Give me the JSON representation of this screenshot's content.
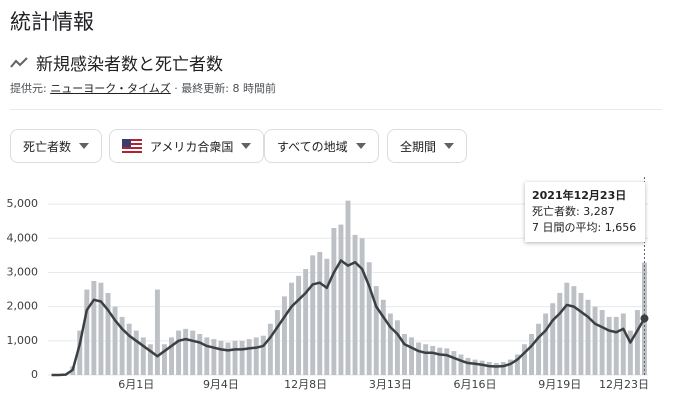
{
  "header": {
    "title": "統計情報",
    "subtitle": "新規感染者数と死亡者数",
    "source_label": "提供元:",
    "source": "ニューヨーク・タイムズ",
    "updated": "· 最終更新: 8 時間前"
  },
  "filters": [
    "死亡者数",
    "アメリカ合衆国",
    "すべての地域",
    "全期間"
  ],
  "tooltip": {
    "date": "2021年12月23日",
    "row1": "死亡者数: 3,287",
    "row2": "7 日間の平均: 1,656"
  },
  "chart_data": {
    "type": "bar-line",
    "categories": [
      null,
      null,
      null,
      null,
      null,
      null,
      null,
      null,
      null,
      null,
      null,
      null,
      "6月1日",
      null,
      null,
      null,
      null,
      null,
      null,
      null,
      null,
      null,
      null,
      null,
      "9月4日",
      null,
      null,
      null,
      null,
      null,
      null,
      null,
      null,
      null,
      null,
      null,
      "12月8日",
      null,
      null,
      null,
      null,
      null,
      null,
      null,
      null,
      null,
      null,
      null,
      "3月13日",
      null,
      null,
      null,
      null,
      null,
      null,
      null,
      null,
      null,
      null,
      null,
      "6月16日",
      null,
      null,
      null,
      null,
      null,
      null,
      null,
      null,
      null,
      null,
      null,
      "9月19日",
      null,
      null,
      null,
      null,
      null,
      null,
      null,
      null,
      null,
      null,
      null,
      "12月23日"
    ],
    "series": [
      {
        "name": "死亡者数",
        "color": "#bdc1c6",
        "values": [
          0,
          0,
          15,
          250,
          1300,
          2500,
          2750,
          2700,
          2400,
          2000,
          1700,
          1500,
          1300,
          1100,
          900,
          2500,
          900,
          1100,
          1300,
          1350,
          1300,
          1200,
          1100,
          1050,
          1000,
          950,
          1000,
          1000,
          1050,
          1100,
          1150,
          1500,
          1900,
          2300,
          2700,
          2900,
          3100,
          3500,
          3600,
          3400,
          4300,
          4400,
          5100,
          4100,
          4000,
          3300,
          2600,
          2200,
          1800,
          1600,
          1200,
          1100,
          950,
          900,
          850,
          800,
          780,
          700,
          600,
          500,
          450,
          420,
          380,
          350,
          380,
          450,
          600,
          900,
          1200,
          1500,
          1800,
          2100,
          2400,
          2700,
          2600,
          2400,
          2200,
          2000,
          1900,
          1700,
          1700,
          1800,
          1300,
          1900,
          3287
        ]
      },
      {
        "name": "7 日間の平均",
        "color": "#3c4043",
        "values": [
          0,
          0,
          10,
          150,
          900,
          1900,
          2200,
          2150,
          1900,
          1600,
          1350,
          1150,
          1000,
          850,
          700,
          550,
          700,
          850,
          1000,
          1050,
          1000,
          950,
          850,
          800,
          750,
          720,
          750,
          750,
          780,
          800,
          850,
          1100,
          1400,
          1700,
          2000,
          2200,
          2400,
          2650,
          2700,
          2550,
          3000,
          3350,
          3200,
          3300,
          3100,
          2600,
          2000,
          1700,
          1400,
          1200,
          900,
          800,
          700,
          650,
          650,
          600,
          580,
          500,
          420,
          350,
          330,
          300,
          260,
          250,
          260,
          320,
          450,
          650,
          850,
          1100,
          1300,
          1600,
          1800,
          2050,
          2000,
          1850,
          1700,
          1500,
          1400,
          1300,
          1250,
          1350,
          950,
          1300,
          1656
        ]
      }
    ],
    "ylim": [
      0,
      5500
    ],
    "yticks": [
      0,
      {
        "value": 1000,
        "label": "1,000"
      },
      {
        "value": 2000,
        "label": "2,000"
      },
      {
        "value": 3000,
        "label": "3,000"
      },
      {
        "value": 4000,
        "label": "4,000"
      },
      {
        "value": 5000,
        "label": "5,000"
      }
    ],
    "grid": true
  }
}
